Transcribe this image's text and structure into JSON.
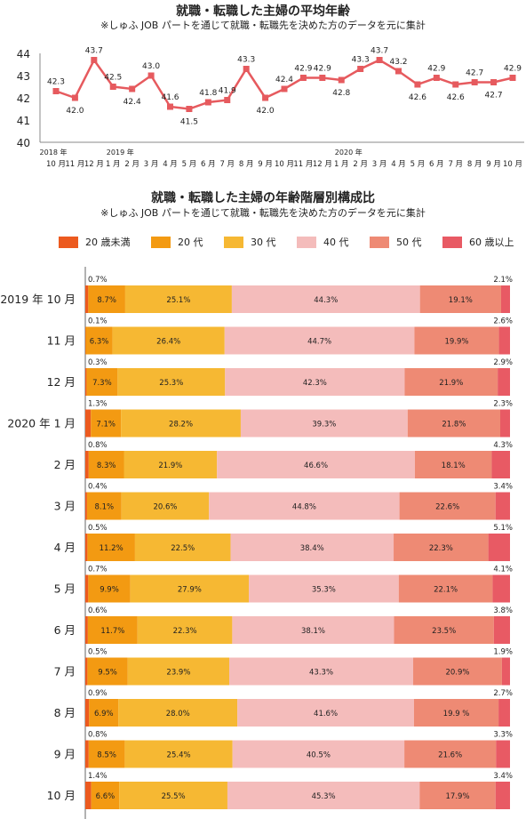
{
  "chart_data": [
    {
      "type": "line",
      "title": "就職・転職した主婦の平均年齢",
      "subtitle": "※しゅふ JOB パートを通じて就職・転職先を決めた方のデータを元に集計",
      "x": [
        "2018-10",
        "2018-11",
        "2018-12",
        "2019-01",
        "2019-02",
        "2019-03",
        "2019-04",
        "2019-05",
        "2019-06",
        "2019-07",
        "2019-08",
        "2019-09",
        "2019-10",
        "2019-11",
        "2019-12",
        "2020-01",
        "2020-02",
        "2020-03",
        "2020-04",
        "2020-05",
        "2020-06",
        "2020-07",
        "2020-08",
        "2020-09",
        "2020-10"
      ],
      "x_tick_labels": [
        "10 月",
        "11 月",
        "12 月",
        "1 月",
        "2 月",
        "3 月",
        "4 月",
        "5 月",
        "6 月",
        "7 月",
        "8 月",
        "9 月",
        "10 月",
        "11 月",
        "12 月",
        "1 月",
        "2 月",
        "3 月",
        "4 月",
        "5 月",
        "6 月",
        "7 月",
        "8 月",
        "9 月",
        "10 月"
      ],
      "year_labels": [
        {
          "index": 0,
          "text": "2018 年"
        },
        {
          "index": 3,
          "text": "2019 年"
        },
        {
          "index": 15,
          "text": "2020 年"
        }
      ],
      "values": [
        42.3,
        42.0,
        43.7,
        42.5,
        42.4,
        43.0,
        41.6,
        41.5,
        41.8,
        41.9,
        43.3,
        42.0,
        42.4,
        42.9,
        42.9,
        42.8,
        43.3,
        43.7,
        43.2,
        42.6,
        42.9,
        42.6,
        42.7,
        42.7,
        42.9
      ],
      "data_labels": [
        "42.3",
        "42.0",
        "43.7",
        "42.5",
        "42.4",
        "43.0",
        "41.6",
        "41.5",
        "41.8",
        "41.9",
        "43.3",
        "42.0",
        "42.4",
        "42.9",
        "42.9",
        "42.8",
        "43.3",
        "43.7",
        "43.2",
        "42.6",
        "42.9",
        "42.6",
        "42.7",
        "42.7",
        "42.9"
      ],
      "ylim": [
        40,
        44
      ],
      "yticks": [
        40,
        41,
        42,
        43,
        44
      ],
      "line_color": "#e65a5e"
    },
    {
      "type": "bar",
      "stacked": true,
      "orientation": "horizontal",
      "title": "就職・転職した主婦の年齢階層別構成比",
      "subtitle": "※しゅふ JOB パートを通じて就職・転職先を決めた方のデータを元に集計",
      "categories": [
        "2019 年 10 月",
        "11 月",
        "12 月",
        "2020 年 1 月",
        "2 月",
        "3 月",
        "4 月",
        "5 月",
        "6 月",
        "7 月",
        "8 月",
        "9 月",
        "10 月"
      ],
      "series": [
        {
          "name": "20 歳未満",
          "color": "#ec5a1f",
          "values": [
            0.7,
            0.1,
            0.3,
            1.3,
            0.8,
            0.4,
            0.5,
            0.7,
            0.6,
            0.5,
            0.9,
            0.8,
            1.4
          ],
          "labels": [
            "0.7%",
            "0.1%",
            "0.3%",
            "1.3%",
            "0.8%",
            "0.4%",
            "0.5%",
            "0.7%",
            "0.6%",
            "0.5%",
            "0.9%",
            "0.8%",
            "1.4%"
          ]
        },
        {
          "name": "20 代",
          "color": "#f39a12",
          "values": [
            8.7,
            6.3,
            7.3,
            7.1,
            8.3,
            8.1,
            11.2,
            9.9,
            11.7,
            9.5,
            6.9,
            8.5,
            6.6
          ],
          "labels": [
            "8.7%",
            "6.3%",
            "7.3%",
            "7.1%",
            "8.3%",
            "8.1%",
            "11.2%",
            "9.9%",
            "11.7%",
            "9.5%",
            "6.9%",
            "8.5%",
            "6.6%"
          ]
        },
        {
          "name": "30 代",
          "color": "#f6b833",
          "values": [
            25.1,
            26.4,
            25.3,
            28.2,
            21.9,
            20.6,
            22.5,
            27.9,
            22.3,
            23.9,
            28.0,
            25.4,
            25.5
          ],
          "labels": [
            "25.1%",
            "26.4%",
            "25.3%",
            "28.2%",
            "21.9%",
            "20.6%",
            "22.5%",
            "27.9%",
            "22.3%",
            "23.9%",
            "28.0%",
            "25.4%",
            "25.5%"
          ]
        },
        {
          "name": "40 代",
          "color": "#f4bcbb",
          "values": [
            44.3,
            44.7,
            42.3,
            39.3,
            46.6,
            44.8,
            38.4,
            35.3,
            38.1,
            43.3,
            41.6,
            40.5,
            45.3
          ],
          "labels": [
            "44.3%",
            "44.7%",
            "42.3%",
            "39.3%",
            "46.6%",
            "44.8%",
            "38.4%",
            "35.3%",
            "38.1%",
            "43.3%",
            "41.6%",
            "40.5%",
            "45.3%"
          ]
        },
        {
          "name": "50 代",
          "color": "#ee8a74",
          "values": [
            19.1,
            19.9,
            21.9,
            21.8,
            18.1,
            22.6,
            22.3,
            22.1,
            23.5,
            20.9,
            19.9,
            21.6,
            17.9
          ],
          "labels": [
            "19.1%",
            "19.9%",
            "21.9%",
            "21.8%",
            "18.1%",
            "22.6%",
            "22.3%",
            "22.1%",
            "23.5%",
            "20.9%",
            "19.9 %",
            "21.6%",
            "17.9%"
          ]
        },
        {
          "name": "60 歳以上",
          "color": "#e85a64",
          "values": [
            2.1,
            2.6,
            2.9,
            2.3,
            4.3,
            3.4,
            5.1,
            4.1,
            3.8,
            1.9,
            2.7,
            3.3,
            3.4
          ],
          "labels": [
            "2.1%",
            "2.6%",
            "2.9%",
            "2.3%",
            "4.3%",
            "3.4%",
            "5.1%",
            "4.1%",
            "3.8%",
            "1.9%",
            "2.7%",
            "3.3%",
            "3.4%"
          ]
        }
      ],
      "legend_position": "top"
    }
  ]
}
